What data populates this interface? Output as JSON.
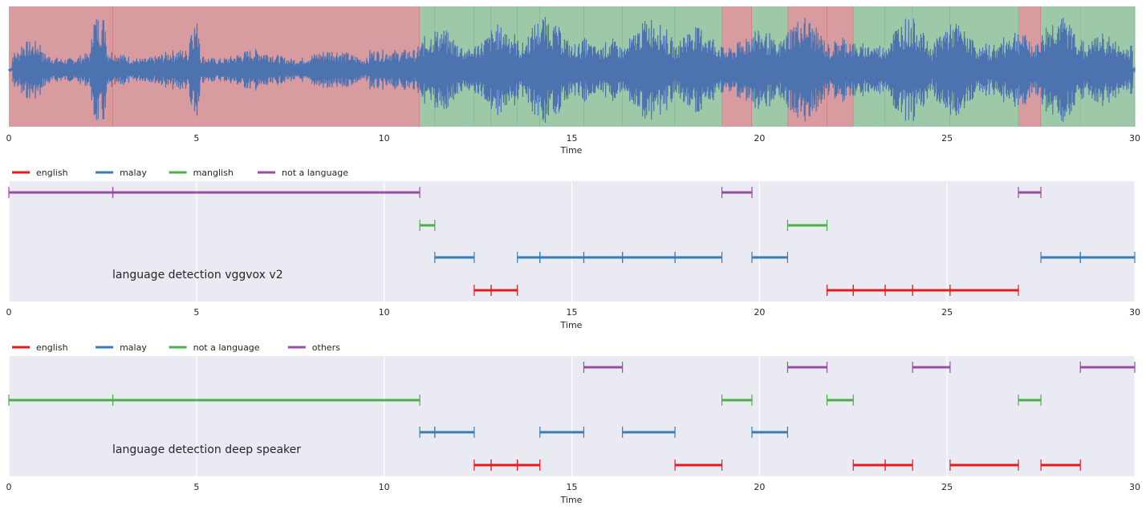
{
  "colors": {
    "panel_bg": "#eaeaf2",
    "waveform": "#4c72b0",
    "speech_region": "#9ec9a9",
    "non_speech_region": "#d79ba0",
    "english": "#e41a1c",
    "malay": "#377eb8",
    "green": "#4daf4a",
    "purple": "#984ea3"
  },
  "chart_data": [
    {
      "type": "area",
      "name": "waveform",
      "xlabel": "Time",
      "xlim": [
        0,
        30
      ],
      "xticks": [
        "0",
        "5",
        "10",
        "15",
        "20",
        "25",
        "30"
      ],
      "xtick_values": [
        0,
        5,
        10,
        15,
        20,
        25,
        30
      ],
      "regions": [
        {
          "start": 0.0,
          "end": 2.77,
          "kind": "not a language"
        },
        {
          "start": 2.77,
          "end": 10.95,
          "kind": "not a language"
        },
        {
          "start": 10.95,
          "end": 11.35,
          "kind": "language"
        },
        {
          "start": 11.35,
          "end": 12.4,
          "kind": "language"
        },
        {
          "start": 12.4,
          "end": 12.85,
          "kind": "language"
        },
        {
          "start": 12.85,
          "end": 13.55,
          "kind": "language"
        },
        {
          "start": 13.55,
          "end": 14.15,
          "kind": "language"
        },
        {
          "start": 14.15,
          "end": 15.32,
          "kind": "language"
        },
        {
          "start": 15.32,
          "end": 16.35,
          "kind": "language"
        },
        {
          "start": 16.35,
          "end": 17.75,
          "kind": "language"
        },
        {
          "start": 17.75,
          "end": 19.0,
          "kind": "language"
        },
        {
          "start": 19.0,
          "end": 19.8,
          "kind": "not a language"
        },
        {
          "start": 19.8,
          "end": 20.75,
          "kind": "language"
        },
        {
          "start": 20.75,
          "end": 21.8,
          "kind": "not a language"
        },
        {
          "start": 21.8,
          "end": 22.5,
          "kind": "not a language"
        },
        {
          "start": 22.5,
          "end": 23.35,
          "kind": "language"
        },
        {
          "start": 23.35,
          "end": 24.08,
          "kind": "language"
        },
        {
          "start": 24.08,
          "end": 25.08,
          "kind": "language"
        },
        {
          "start": 25.08,
          "end": 26.9,
          "kind": "language"
        },
        {
          "start": 26.9,
          "end": 27.5,
          "kind": "not a language"
        },
        {
          "start": 27.5,
          "end": 28.55,
          "kind": "language"
        },
        {
          "start": 28.55,
          "end": 30.0,
          "kind": "language"
        }
      ]
    },
    {
      "type": "scatter",
      "name": "vggvox",
      "annotation": "language detection vggvox v2",
      "xlabel": "Time",
      "xlim": [
        0,
        30
      ],
      "xticks": [
        "0",
        "5",
        "10",
        "15",
        "20",
        "25",
        "30"
      ],
      "xtick_values": [
        0,
        5,
        10,
        15,
        20,
        25,
        30
      ],
      "legend": [
        "english",
        "malay",
        "manglish",
        "not a language"
      ],
      "legend_colors": [
        "#e41a1c",
        "#377eb8",
        "#4daf4a",
        "#984ea3"
      ],
      "series": [
        {
          "name": "not a language",
          "row": 0,
          "color": "#984ea3",
          "segments": [
            [
              0,
              2.77
            ],
            [
              2.77,
              10.95
            ],
            [
              19.0,
              19.8
            ],
            [
              26.9,
              27.5
            ]
          ]
        },
        {
          "name": "manglish",
          "row": 1,
          "color": "#4daf4a",
          "segments": [
            [
              10.95,
              11.35
            ],
            [
              20.75,
              21.8
            ]
          ]
        },
        {
          "name": "malay",
          "row": 2,
          "color": "#377eb8",
          "segments": [
            [
              11.35,
              12.4
            ],
            [
              13.55,
              14.15
            ],
            [
              14.15,
              15.32
            ],
            [
              15.32,
              16.35
            ],
            [
              16.35,
              17.75
            ],
            [
              17.75,
              19.0
            ],
            [
              19.8,
              20.75
            ],
            [
              27.5,
              28.55
            ],
            [
              28.55,
              30.0
            ]
          ]
        },
        {
          "name": "english",
          "row": 3,
          "color": "#e41a1c",
          "segments": [
            [
              12.4,
              12.85
            ],
            [
              12.85,
              13.55
            ],
            [
              21.8,
              22.5
            ],
            [
              22.5,
              23.35
            ],
            [
              23.35,
              24.08
            ],
            [
              24.08,
              25.08
            ],
            [
              25.08,
              26.9
            ]
          ]
        }
      ]
    },
    {
      "type": "scatter",
      "name": "deep-speaker",
      "annotation": "language detection deep speaker",
      "xlabel": "Time",
      "xlim": [
        0,
        30
      ],
      "xticks": [
        "0",
        "5",
        "10",
        "15",
        "20",
        "25",
        "30"
      ],
      "xtick_values": [
        0,
        5,
        10,
        15,
        20,
        25,
        30
      ],
      "legend": [
        "english",
        "malay",
        "not a language",
        "others"
      ],
      "legend_colors": [
        "#e41a1c",
        "#377eb8",
        "#4daf4a",
        "#984ea3"
      ],
      "series": [
        {
          "name": "others",
          "row": 0,
          "color": "#984ea3",
          "segments": [
            [
              15.32,
              16.35
            ],
            [
              20.75,
              21.8
            ],
            [
              24.08,
              25.08
            ],
            [
              28.55,
              30.0
            ]
          ]
        },
        {
          "name": "not a language",
          "row": 1,
          "color": "#4daf4a",
          "segments": [
            [
              0,
              2.77
            ],
            [
              2.77,
              10.95
            ],
            [
              19.0,
              19.8
            ],
            [
              21.8,
              22.5
            ],
            [
              26.9,
              27.5
            ]
          ]
        },
        {
          "name": "malay",
          "row": 2,
          "color": "#377eb8",
          "segments": [
            [
              10.95,
              11.35
            ],
            [
              11.35,
              12.4
            ],
            [
              14.15,
              15.32
            ],
            [
              16.35,
              17.75
            ],
            [
              19.8,
              20.75
            ]
          ]
        },
        {
          "name": "english",
          "row": 3,
          "color": "#e41a1c",
          "segments": [
            [
              12.4,
              12.85
            ],
            [
              12.85,
              13.55
            ],
            [
              13.55,
              14.15
            ],
            [
              17.75,
              19.0
            ],
            [
              22.5,
              23.35
            ],
            [
              23.35,
              24.08
            ],
            [
              25.08,
              26.9
            ],
            [
              27.5,
              28.55
            ]
          ]
        }
      ]
    }
  ]
}
